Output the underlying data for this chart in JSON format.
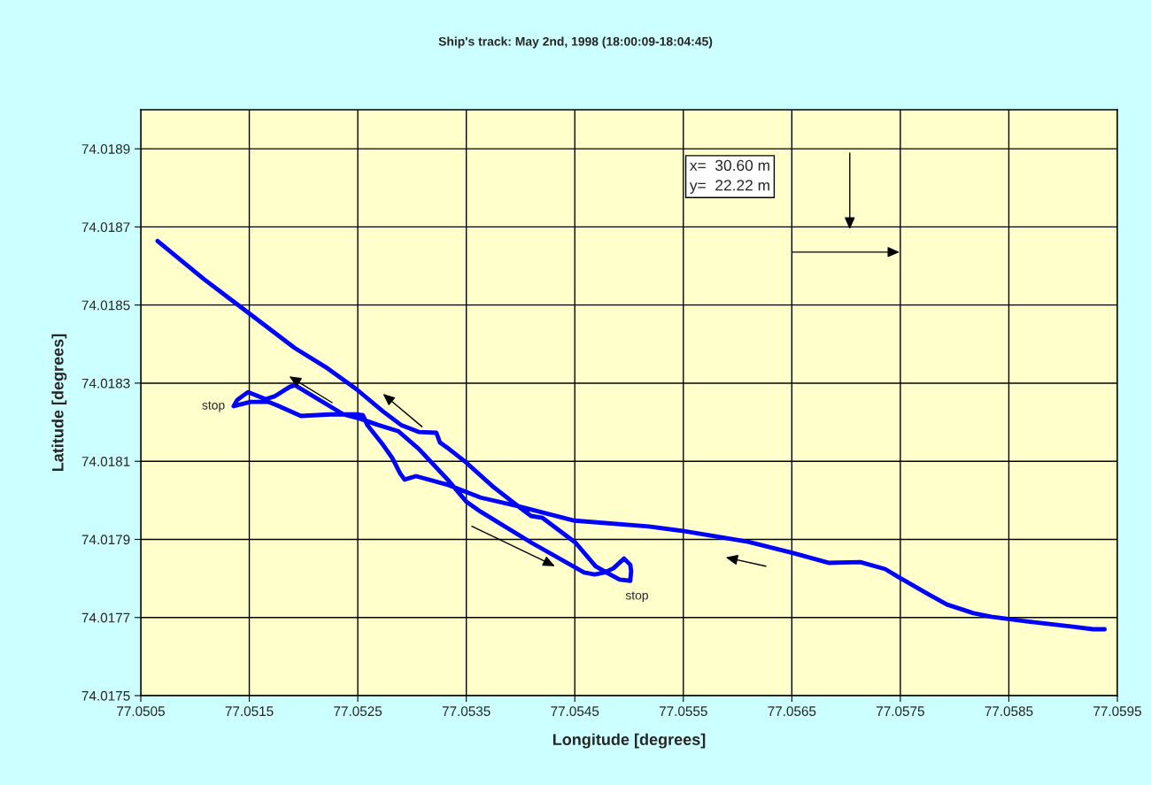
{
  "chart_data": {
    "type": "line",
    "title": "Ship's track: May 2nd, 1998 (18:00:09-18:04:45)",
    "xlabel": "Longitude [degrees]",
    "ylabel": "Latitude [degrees]",
    "series": [
      {
        "color": "#0000ff",
        "x": [
          77.050655,
          77.051079,
          77.051487,
          77.051919,
          77.052221,
          77.05249,
          77.052735,
          77.052898,
          77.053061,
          77.053224,
          77.053257,
          77.053338,
          77.053502,
          77.053746,
          77.053991,
          77.054097,
          77.054203,
          77.054505,
          77.054692,
          77.054807,
          77.054913,
          77.055011,
          77.055019,
          77.055011,
          77.054954,
          77.054856,
          77.054774,
          77.054684,
          77.054586,
          77.054097,
          77.053632,
          77.053502,
          77.053338,
          77.053061,
          77.052874,
          77.052686,
          77.052523,
          77.052368,
          77.051919,
          77.05187,
          77.051732,
          77.05165,
          77.051487,
          77.051389,
          77.051356,
          77.051511,
          77.051675,
          77.051756,
          77.051976,
          77.052246,
          77.05249,
          77.052547,
          77.052588,
          77.052735,
          77.052816,
          77.05289,
          77.052931,
          77.053037,
          77.053338,
          77.053632,
          77.053975,
          77.054497,
          77.055182,
          77.055508,
          77.056095,
          77.056511,
          77.056838,
          77.057131,
          77.05736,
          77.057498,
          77.057768,
          77.057931,
          77.058175,
          77.058338,
          77.058665,
          77.059073,
          77.059277,
          77.059383
        ],
        "values": [
          74.018664,
          74.018567,
          74.018481,
          74.01839,
          74.018338,
          74.018284,
          74.018227,
          74.018193,
          74.018175,
          74.018173,
          74.018148,
          74.018132,
          74.018096,
          74.018035,
          74.017982,
          74.01796,
          74.017955,
          74.017892,
          74.017831,
          74.017813,
          74.017797,
          74.017794,
          74.017819,
          74.017835,
          74.017851,
          74.017826,
          74.017815,
          74.01781,
          74.017815,
          74.017892,
          74.017971,
          74.017996,
          74.01805,
          74.018132,
          74.018177,
          74.018193,
          74.018209,
          74.01822,
          74.018295,
          74.01829,
          74.018266,
          74.018259,
          74.018277,
          74.018257,
          74.018241,
          74.018252,
          74.018252,
          74.018243,
          74.018216,
          74.01822,
          74.01822,
          74.018218,
          74.018193,
          74.018141,
          74.018109,
          74.018069,
          74.018053,
          74.018062,
          74.018039,
          74.018007,
          74.017985,
          74.017948,
          74.017933,
          74.017921,
          74.017894,
          74.017865,
          74.01784,
          74.017842,
          74.017824,
          74.017801,
          74.017758,
          74.017733,
          74.017711,
          74.017702,
          74.01769,
          74.017677,
          74.01767,
          74.01767
        ]
      }
    ],
    "xlim": [
      77.0505,
      77.0595
    ],
    "xticks": [
      77.0505,
      77.0515,
      77.0525,
      77.0535,
      77.0545,
      77.0555,
      77.0565,
      77.0575,
      77.0585,
      77.0595
    ],
    "ylim": [
      74.0175,
      74.019
    ],
    "yticks": [
      74.0175,
      74.0177,
      74.0179,
      74.0181,
      74.0183,
      74.0185,
      74.0187,
      74.0189
    ],
    "grid": true,
    "marker": "none",
    "line_style": "solid",
    "annotations": [
      {
        "text": "stop",
        "x": 77.051356,
        "y": 74.018241
      },
      {
        "text": "stop",
        "x": 77.055011,
        "y": 74.017794
      },
      "x=  30.60 m\ny=  22.22 m"
    ]
  }
}
